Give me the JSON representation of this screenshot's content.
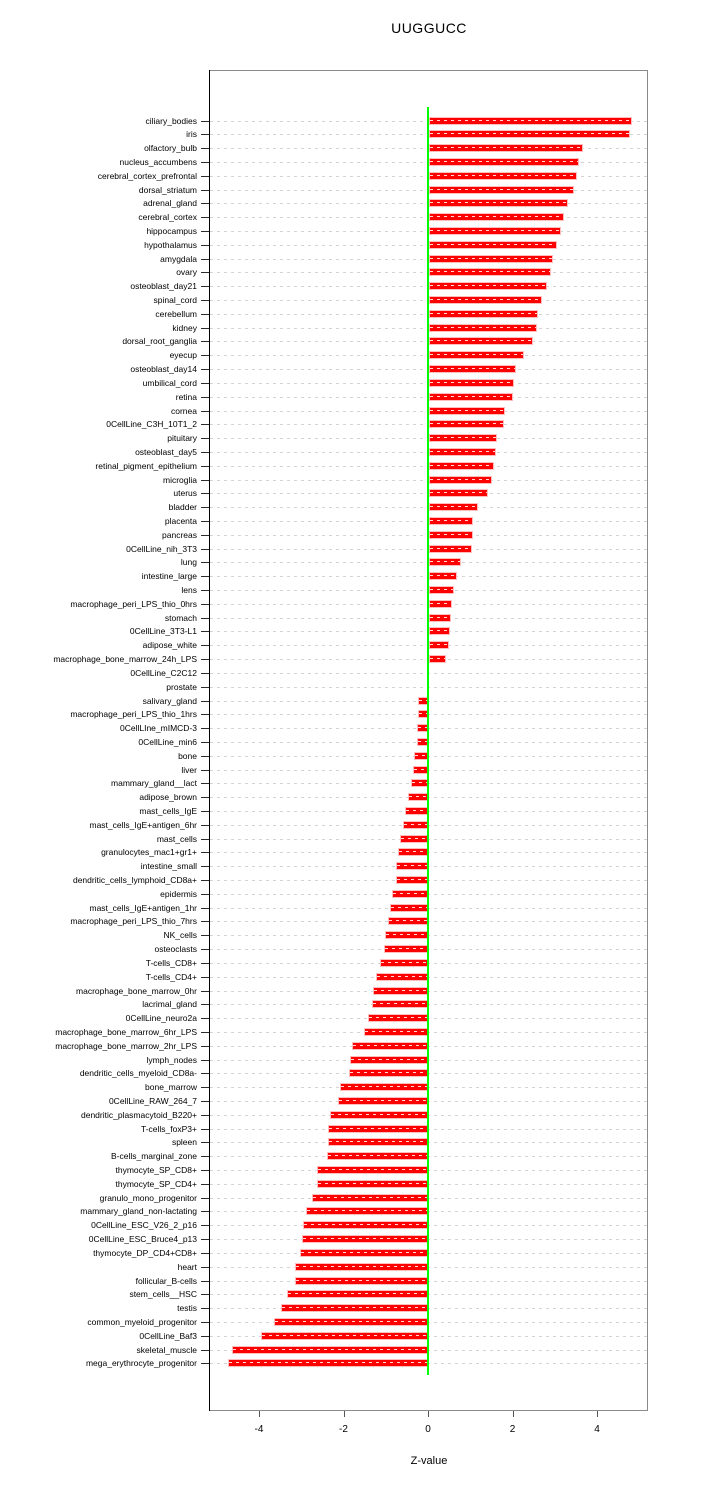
{
  "chart_data": {
    "type": "bar",
    "orientation": "horizontal",
    "title": "UUGGUCC",
    "xlabel": "Z-value",
    "ylabel": "",
    "xlim": [
      -5.2,
      5.2
    ],
    "x_ticks": [
      -4,
      -2,
      0,
      2,
      4
    ],
    "x_tick_labels": [
      "-4",
      "-2",
      "0",
      "2",
      "4"
    ],
    "grid": "dashed-horizontal-per-category",
    "bar_color": "#ff0000",
    "zero_line_color": "#00ff00",
    "categories": [
      "ciliary_bodies",
      "iris",
      "olfactory_bulb",
      "nucleus_accumbens",
      "cerebral_cortex_prefrontal",
      "dorsal_striatum",
      "adrenal_gland",
      "cerebral_cortex",
      "hippocampus",
      "hypothalamus",
      "amygdala",
      "ovary",
      "osteoblast_day21",
      "spinal_cord",
      "cerebellum",
      "kidney",
      "dorsal_root_ganglia",
      "eyecup",
      "osteoblast_day14",
      "umbilical_cord",
      "retina",
      "cornea",
      "0CellLine_C3H_10T1_2",
      "pituitary",
      "osteoblast_day5",
      "retinal_pigment_epithelium",
      "microglia",
      "uterus",
      "bladder",
      "placenta",
      "pancreas",
      "0CellLine_nih_3T3",
      "lung",
      "intestine_large",
      "lens",
      "macrophage_peri_LPS_thio_0hrs",
      "stomach",
      "0CellLine_3T3-L1",
      "adipose_white",
      "macrophage_bone_marrow_24h_LPS",
      "0CellLine_C2C12",
      "prostate",
      "salivary_gland",
      "macrophage_peri_LPS_thio_1hrs",
      "0CellLIne_mIMCD-3",
      "0CellLine_min6",
      "bone",
      "liver",
      "mammary_gland__lact",
      "adipose_brown",
      "mast_cells_IgE",
      "mast_cells_IgE+antigen_6hr",
      "mast_cells",
      "granulocytes_mac1+gr1+",
      "intestine_small",
      "dendritic_cells_lymphoid_CD8a+",
      "epidermis",
      "mast_cells_IgE+antigen_1hr",
      "macrophage_peri_LPS_thio_7hrs",
      "NK_cells",
      "osteoclasts",
      "T-cells_CD8+",
      "T-cells_CD4+",
      "macrophage_bone_marrow_0hr",
      "lacrimal_gland",
      "0CellLine_neuro2a",
      "macrophage_bone_marrow_6hr_LPS",
      "macrophage_bone_marrow_2hr_LPS",
      "lymph_nodes",
      "dendritic_cells_myeloid_CD8a-",
      "bone_marrow",
      "0CellLine_RAW_264_7",
      "dendritic_plasmacytoid_B220+",
      "T-cells_foxP3+",
      "spleen",
      "B-cells_marginal_zone",
      "thymocyte_SP_CD8+",
      "thymocyte_SP_CD4+",
      "granulo_mono_progenitor",
      "mammary_gland_non-lactating",
      "0CellLine_ESC_V26_2_p16",
      "0CellLine_ESC_Bruce4_p13",
      "thymocyte_DP_CD4+CD8+",
      "heart",
      "follicular_B-cells",
      "stem_cells__HSC",
      "testis",
      "common_myeloid_progenitor",
      "0CellLine_Baf3",
      "skeletal_muscle",
      "mega_erythrocyte_progenitor"
    ],
    "values": [
      4.84,
      4.79,
      3.67,
      3.57,
      3.53,
      3.45,
      3.32,
      3.22,
      3.15,
      3.05,
      2.97,
      2.9,
      2.81,
      2.7,
      2.6,
      2.57,
      2.48,
      2.27,
      2.08,
      2.04,
      2.0,
      1.83,
      1.8,
      1.63,
      1.62,
      1.57,
      1.51,
      1.43,
      1.18,
      1.07,
      1.06,
      1.04,
      0.79,
      0.69,
      0.62,
      0.57,
      0.54,
      0.53,
      0.5,
      0.42,
      0.01,
      -0.05,
      -0.25,
      -0.26,
      -0.28,
      -0.29,
      -0.35,
      -0.38,
      -0.43,
      -0.5,
      -0.57,
      -0.62,
      -0.69,
      -0.73,
      -0.77,
      -0.78,
      -0.88,
      -0.92,
      -0.98,
      -1.05,
      -1.07,
      -1.17,
      -1.25,
      -1.33,
      -1.35,
      -1.44,
      -1.55,
      -1.82,
      -1.87,
      -1.9,
      -2.11,
      -2.16,
      -2.34,
      -2.39,
      -2.4,
      -2.41,
      -2.64,
      -2.65,
      -2.78,
      -2.9,
      -2.99,
      -3.01,
      -3.05,
      -3.16,
      -3.16,
      -3.36,
      -3.5,
      -3.68,
      -3.97,
      -4.66,
      -4.75
    ]
  }
}
